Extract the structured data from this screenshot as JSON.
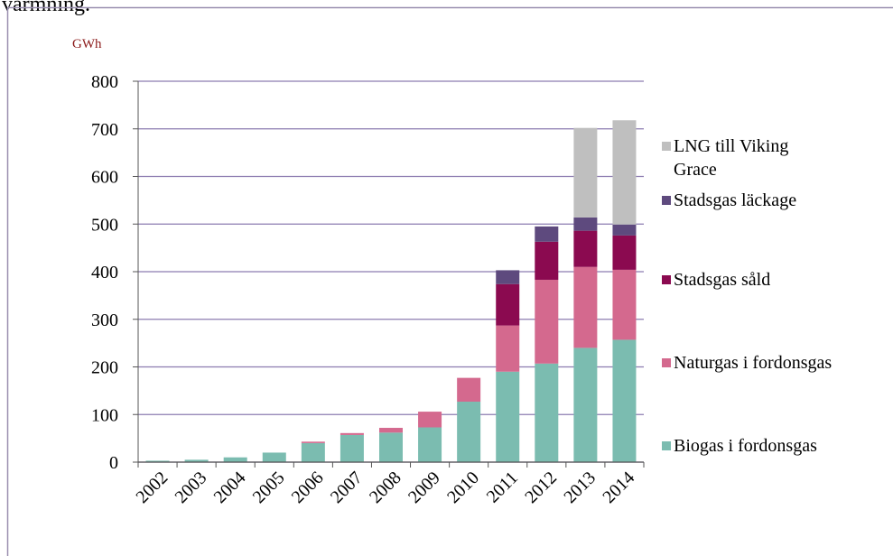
{
  "caption": "värmning.",
  "chart_data": {
    "type": "stacked_bar",
    "y_unit_label": "GWh",
    "categories": [
      "2002",
      "2003",
      "2004",
      "2005",
      "2006",
      "2007",
      "2008",
      "2009",
      "2010",
      "2011",
      "2012",
      "2013",
      "2014"
    ],
    "series": [
      {
        "name": "Biogas i fordonsgas",
        "color": "#7bbcb0",
        "values": [
          3,
          5,
          10,
          20,
          40,
          57,
          62,
          73,
          127,
          190,
          207,
          240,
          257
        ]
      },
      {
        "name": "Naturgas i fordonsgas",
        "color": "#d4698e",
        "values": [
          0,
          0,
          0,
          0,
          3,
          4,
          10,
          33,
          50,
          97,
          176,
          170,
          147
        ]
      },
      {
        "name": "Stadsgas såld",
        "color": "#8b0a50",
        "values": [
          0,
          0,
          0,
          0,
          0,
          0,
          0,
          0,
          0,
          87,
          80,
          76,
          72
        ]
      },
      {
        "name": "Stadsgas läckage",
        "color": "#5e4a7e",
        "values": [
          0,
          0,
          0,
          0,
          0,
          0,
          0,
          0,
          0,
          29,
          32,
          28,
          23
        ]
      },
      {
        "name": "LNG till Viking Grace",
        "color": "#bfbfbf",
        "values": [
          0,
          0,
          0,
          0,
          0,
          0,
          0,
          0,
          0,
          0,
          0,
          188,
          219
        ]
      }
    ],
    "ylim": [
      0,
      800
    ],
    "yticks": [
      0,
      100,
      200,
      300,
      400,
      500,
      600,
      700,
      800
    ],
    "grid": true,
    "legend": "right"
  }
}
